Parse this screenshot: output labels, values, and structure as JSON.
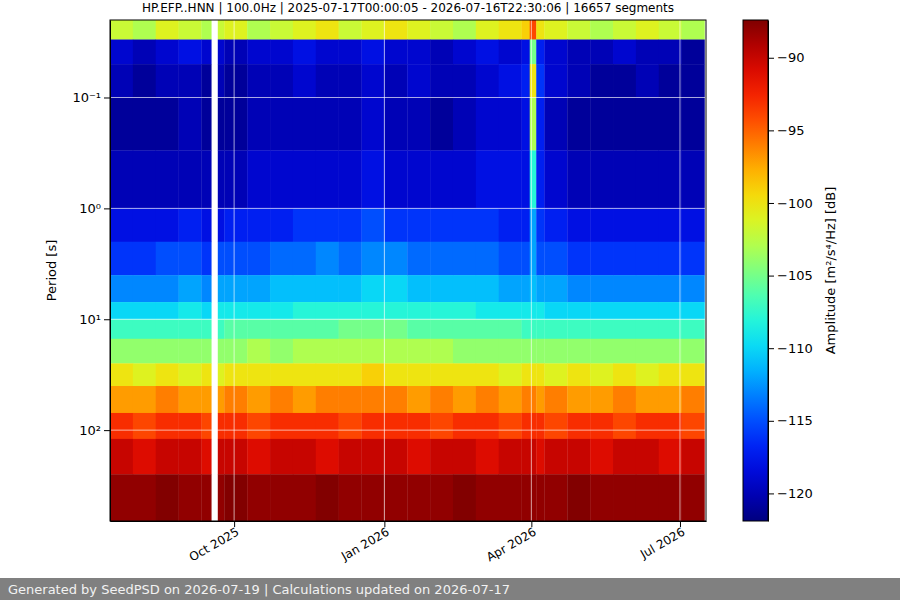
{
  "chart_data": {
    "type": "heatmap",
    "title": "HP.EFP..HNN | 100.0Hz | 2025-07-17T00:00:05 - 2026-07-16T22:30:06 | 16657 segments",
    "y_label": "Period [s]",
    "annotations": [
      "Generated by SeedPSD on 2026-07-19 | Calculations updated on 2026-07-17"
    ],
    "log": "y",
    "grid": true,
    "xlim": [
      "2025-07-17T00:00:05",
      "2026-07-16T22:30:06"
    ],
    "xticks": [
      {
        "value": "2025-10-01",
        "label": "Oct 2025"
      },
      {
        "value": "2026-01-01",
        "label": "Jan 2026"
      },
      {
        "value": "2026-04-01",
        "label": "Apr 2026"
      },
      {
        "value": "2026-07-01",
        "label": "Jul 2026"
      }
    ],
    "ylim": [
      0.02,
      660
    ],
    "yticks": [
      {
        "value": 0.1,
        "label": "10⁻¹"
      },
      {
        "value": 1,
        "label": "10⁰"
      },
      {
        "value": 10,
        "label": "10¹"
      },
      {
        "value": 100,
        "label": "10²"
      }
    ],
    "colorbar": {
      "label": "Amplitude [m²/s⁴/Hz] [dB]",
      "range": [
        -121.9,
        -87.4
      ],
      "ticks": [
        -90,
        -95,
        -100,
        -105,
        -110,
        -115,
        -120
      ]
    },
    "heatmap": {
      "x_edges": [
        "2025-07-17",
        "2025-07-31",
        "2025-08-14",
        "2025-08-28",
        "2025-09-11",
        "2025-09-17",
        "2025-09-21",
        "2025-09-25",
        "2025-10-09",
        "2025-10-23",
        "2025-11-06",
        "2025-11-20",
        "2025-12-04",
        "2025-12-18",
        "2026-01-01",
        "2026-01-15",
        "2026-01-29",
        "2026-02-12",
        "2026-02-26",
        "2026-03-12",
        "2026-03-26",
        "2026-03-31",
        "2026-04-04",
        "2026-04-09",
        "2026-04-23",
        "2026-05-07",
        "2026-05-21",
        "2026-06-04",
        "2026-06-18",
        "2026-07-02",
        "2026-07-16"
      ],
      "y_edges": [
        0.02,
        0.03,
        0.05,
        0.1,
        0.3,
        1,
        2,
        4,
        7,
        10,
        15,
        25,
        40,
        70,
        120,
        250,
        660
      ],
      "values": [
        [
          -102,
          -103,
          -101,
          -102,
          -103,
          null,
          -102,
          -101,
          -103,
          -102,
          -101,
          -100,
          -102,
          -101,
          -100,
          -101,
          -102,
          -103,
          -101,
          -100,
          -99,
          -94,
          -100,
          -101,
          -102,
          -103,
          -102,
          -101,
          -102,
          -103
        ],
        [
          -119,
          -120,
          -119,
          -118,
          -119,
          null,
          -119,
          -120,
          -119,
          -119,
          -118,
          -119,
          -119,
          -118,
          -119,
          -119,
          -120,
          -119,
          -118,
          -119,
          -118,
          -105,
          -117,
          -119,
          -120,
          -120,
          -119,
          -120,
          -120,
          -121
        ],
        [
          -120,
          -121,
          -120,
          -120,
          -121,
          null,
          -120,
          -121,
          -120,
          -120,
          -119,
          -120,
          -120,
          -119,
          -120,
          -119,
          -120,
          -120,
          -119,
          -118,
          -117,
          -100,
          -116,
          -119,
          -120,
          -121,
          -121,
          -120,
          -121,
          -121
        ],
        [
          -121,
          -121,
          -121,
          -120,
          -121,
          null,
          -121,
          -121,
          -120,
          -120,
          -120,
          -120,
          -120,
          -119,
          -120,
          -120,
          -121,
          -120,
          -119,
          -119,
          -118,
          -103,
          -117,
          -120,
          -121,
          -121,
          -121,
          -121,
          -121,
          -121
        ],
        [
          -120,
          -120,
          -120,
          -120,
          -120,
          null,
          -120,
          -120,
          -119,
          -119,
          -119,
          -119,
          -119,
          -118,
          -119,
          -119,
          -119,
          -119,
          -118,
          -118,
          -118,
          -108,
          -117,
          -119,
          -120,
          -120,
          -120,
          -120,
          -120,
          -120
        ],
        [
          -118,
          -118,
          -118,
          -117,
          -118,
          null,
          -118,
          -117,
          -117,
          -117,
          -116,
          -116,
          -116,
          -115,
          -116,
          -116,
          -116,
          -116,
          -116,
          -117,
          -117,
          -112,
          -116,
          -117,
          -118,
          -118,
          -118,
          -118,
          -118,
          -118
        ],
        [
          -116,
          -116,
          -115,
          -115,
          -116,
          null,
          -115,
          -115,
          -115,
          -114,
          -114,
          -113,
          -114,
          -113,
          -113,
          -114,
          -114,
          -114,
          -114,
          -115,
          -115,
          -112,
          -115,
          -115,
          -116,
          -116,
          -116,
          -116,
          -116,
          -116
        ],
        [
          -113,
          -113,
          -113,
          -112,
          -113,
          null,
          -112,
          -112,
          -112,
          -111,
          -111,
          -111,
          -111,
          -110,
          -110,
          -111,
          -111,
          -111,
          -111,
          -112,
          -112,
          -111,
          -112,
          -112,
          -113,
          -113,
          -113,
          -113,
          -113,
          -113
        ],
        [
          -110,
          -110,
          -110,
          -109,
          -110,
          null,
          -109,
          -109,
          -109,
          -109,
          -108,
          -108,
          -108,
          -108,
          -108,
          -108,
          -108,
          -108,
          -109,
          -109,
          -109,
          -109,
          -109,
          -110,
          -110,
          -110,
          -110,
          -110,
          -110,
          -110
        ],
        [
          -107,
          -107,
          -107,
          -107,
          -107,
          null,
          -107,
          -106,
          -106,
          -106,
          -106,
          -106,
          -105,
          -105,
          -105,
          -106,
          -106,
          -106,
          -106,
          -106,
          -107,
          -107,
          -107,
          -107,
          -107,
          -107,
          -107,
          -107,
          -107,
          -107
        ],
        [
          -104,
          -104,
          -104,
          -104,
          -104,
          null,
          -104,
          -104,
          -103,
          -104,
          -103,
          -103,
          -103,
          -103,
          -103,
          -103,
          -103,
          -104,
          -104,
          -104,
          -104,
          -104,
          -104,
          -104,
          -104,
          -104,
          -104,
          -104,
          -104,
          -104
        ],
        [
          -100,
          -101,
          -100,
          -101,
          -100,
          null,
          -101,
          -100,
          -100,
          -100,
          -100,
          -100,
          -100,
          -99,
          -100,
          -100,
          -100,
          -100,
          -100,
          -101,
          -100,
          -100,
          -100,
          -101,
          -100,
          -101,
          -100,
          -101,
          -100,
          -100
        ],
        [
          -97,
          -97,
          -96,
          -97,
          -97,
          null,
          -97,
          -96,
          -97,
          -96,
          -97,
          -96,
          -96,
          -96,
          -96,
          -97,
          -96,
          -97,
          -96,
          -97,
          -96,
          -96,
          -97,
          -96,
          -97,
          -97,
          -96,
          -97,
          -97,
          -96
        ],
        [
          -93,
          -94,
          -93,
          -93,
          -94,
          null,
          -93,
          -93,
          -94,
          -93,
          -93,
          -93,
          -94,
          -93,
          -93,
          -93,
          -94,
          -93,
          -93,
          -94,
          -93,
          -93,
          -93,
          -94,
          -93,
          -93,
          -94,
          -93,
          -93,
          -94
        ],
        [
          -90,
          -91,
          -90,
          -90,
          -91,
          null,
          -90,
          -90,
          -91,
          -90,
          -90,
          -91,
          -90,
          -90,
          -90,
          -91,
          -90,
          -90,
          -91,
          -90,
          -90,
          -90,
          -91,
          -90,
          -90,
          -91,
          -90,
          -90,
          -91,
          -90
        ],
        [
          -88,
          -88,
          -87.5,
          -88,
          -88,
          null,
          -88,
          -87.5,
          -88,
          -88,
          -88,
          -87.5,
          -88,
          -88,
          -88,
          -88,
          -88,
          -87.5,
          -88,
          -88,
          -88,
          -88,
          -88,
          -88,
          -87.5,
          -88,
          -88,
          -88,
          -88,
          -88
        ]
      ]
    }
  }
}
